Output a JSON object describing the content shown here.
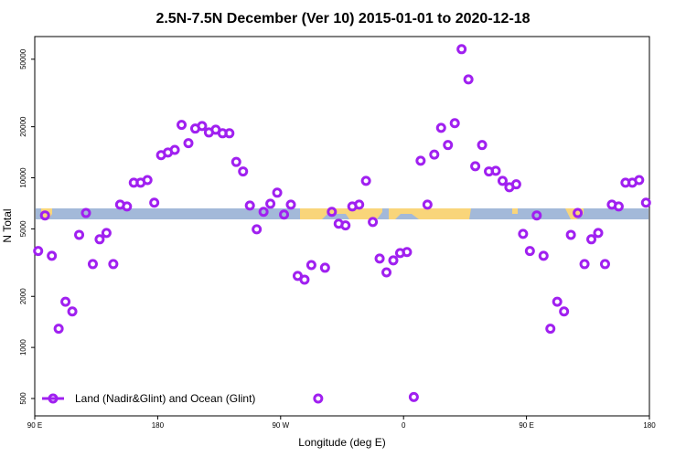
{
  "chart_data": {
    "type": "scatter",
    "title": "2.5N-7.5N December (Ver 10)   2015-01-01 to 2020-12-18",
    "x_label": "Longitude (deg E)",
    "y_label": "N Total",
    "log_y": true,
    "xlim": [
      90,
      540
    ],
    "ylim": [
      395,
      68000
    ],
    "xticks": [
      {
        "value": 90,
        "label": "90 E"
      },
      180,
      {
        "value": 270,
        "label": "90 W"
      },
      {
        "value": 360,
        "label": "0"
      },
      {
        "value": 450,
        "label": "90 E"
      },
      {
        "value": 540,
        "label": "180"
      }
    ],
    "yticks": [
      500,
      1000,
      2000,
      5000,
      10000,
      20000,
      50000
    ],
    "legend": "bottom-left",
    "series": [
      {
        "name": "Land (Nadir&Glint) and Ocean (Glint)",
        "color": "#a020f0",
        "x": [
          92.5,
          97.5,
          102.5,
          107.5,
          112.5,
          117.5,
          122.5,
          127.5,
          132.5,
          137.5,
          142.5,
          147.5,
          152.5,
          157.5,
          162.5,
          167.5,
          172.5,
          177.5,
          182.5,
          187.5,
          192.5,
          197.5,
          202.5,
          207.5,
          212.5,
          217.5,
          222.5,
          227.5,
          232.5,
          237.5,
          242.5,
          247.5,
          252.5,
          257.5,
          262.5,
          267.5,
          272.5,
          277.5,
          282.5,
          287.5,
          292.5,
          297.5,
          302.5,
          307.5,
          312.5,
          317.5,
          322.5,
          327.5,
          332.5,
          337.5,
          342.5,
          347.5,
          352.5,
          357.5,
          362.5,
          367.5,
          372.5,
          377.5,
          382.5,
          387.5,
          392.5,
          397.5,
          402.5,
          407.5,
          412.5,
          417.5,
          422.5,
          427.5,
          432.5,
          437.5,
          442.5,
          447.5,
          452.5,
          457.5,
          462.5,
          467.5,
          472.5,
          477.5,
          482.5,
          487.5,
          492.5,
          497.5,
          502.5,
          507.5,
          512.5,
          517.5,
          522.5,
          527.5,
          532.5,
          537.5
        ],
        "values": [
          3700,
          6000,
          3470,
          1290,
          1860,
          1630,
          4610,
          6200,
          3100,
          4340,
          4730,
          3100,
          6950,
          6780,
          9360,
          9360,
          9700,
          7130,
          13600,
          14100,
          14600,
          20500,
          16000,
          19500,
          20200,
          18500,
          19200,
          18300,
          18300,
          12400,
          10900,
          6860,
          4970,
          6300,
          7030,
          8170,
          6070,
          6950,
          2640,
          2510,
          3060,
          500,
          2950,
          6300,
          5360,
          5240,
          6780,
          6950,
          9590,
          5490,
          3340,
          2770,
          3260,
          3600,
          3650,
          510,
          12600,
          6950,
          13700,
          19700,
          15600,
          21000,
          57300,
          38000,
          11700,
          15600,
          10900,
          11000,
          9590,
          8790,
          9150,
          4670,
          3700,
          6000,
          3470,
          1290,
          1860,
          1630,
          4610,
          6200,
          3100,
          4340,
          4730,
          3100,
          6950,
          6780,
          9360,
          9360,
          9700,
          7130
        ]
      }
    ]
  }
}
